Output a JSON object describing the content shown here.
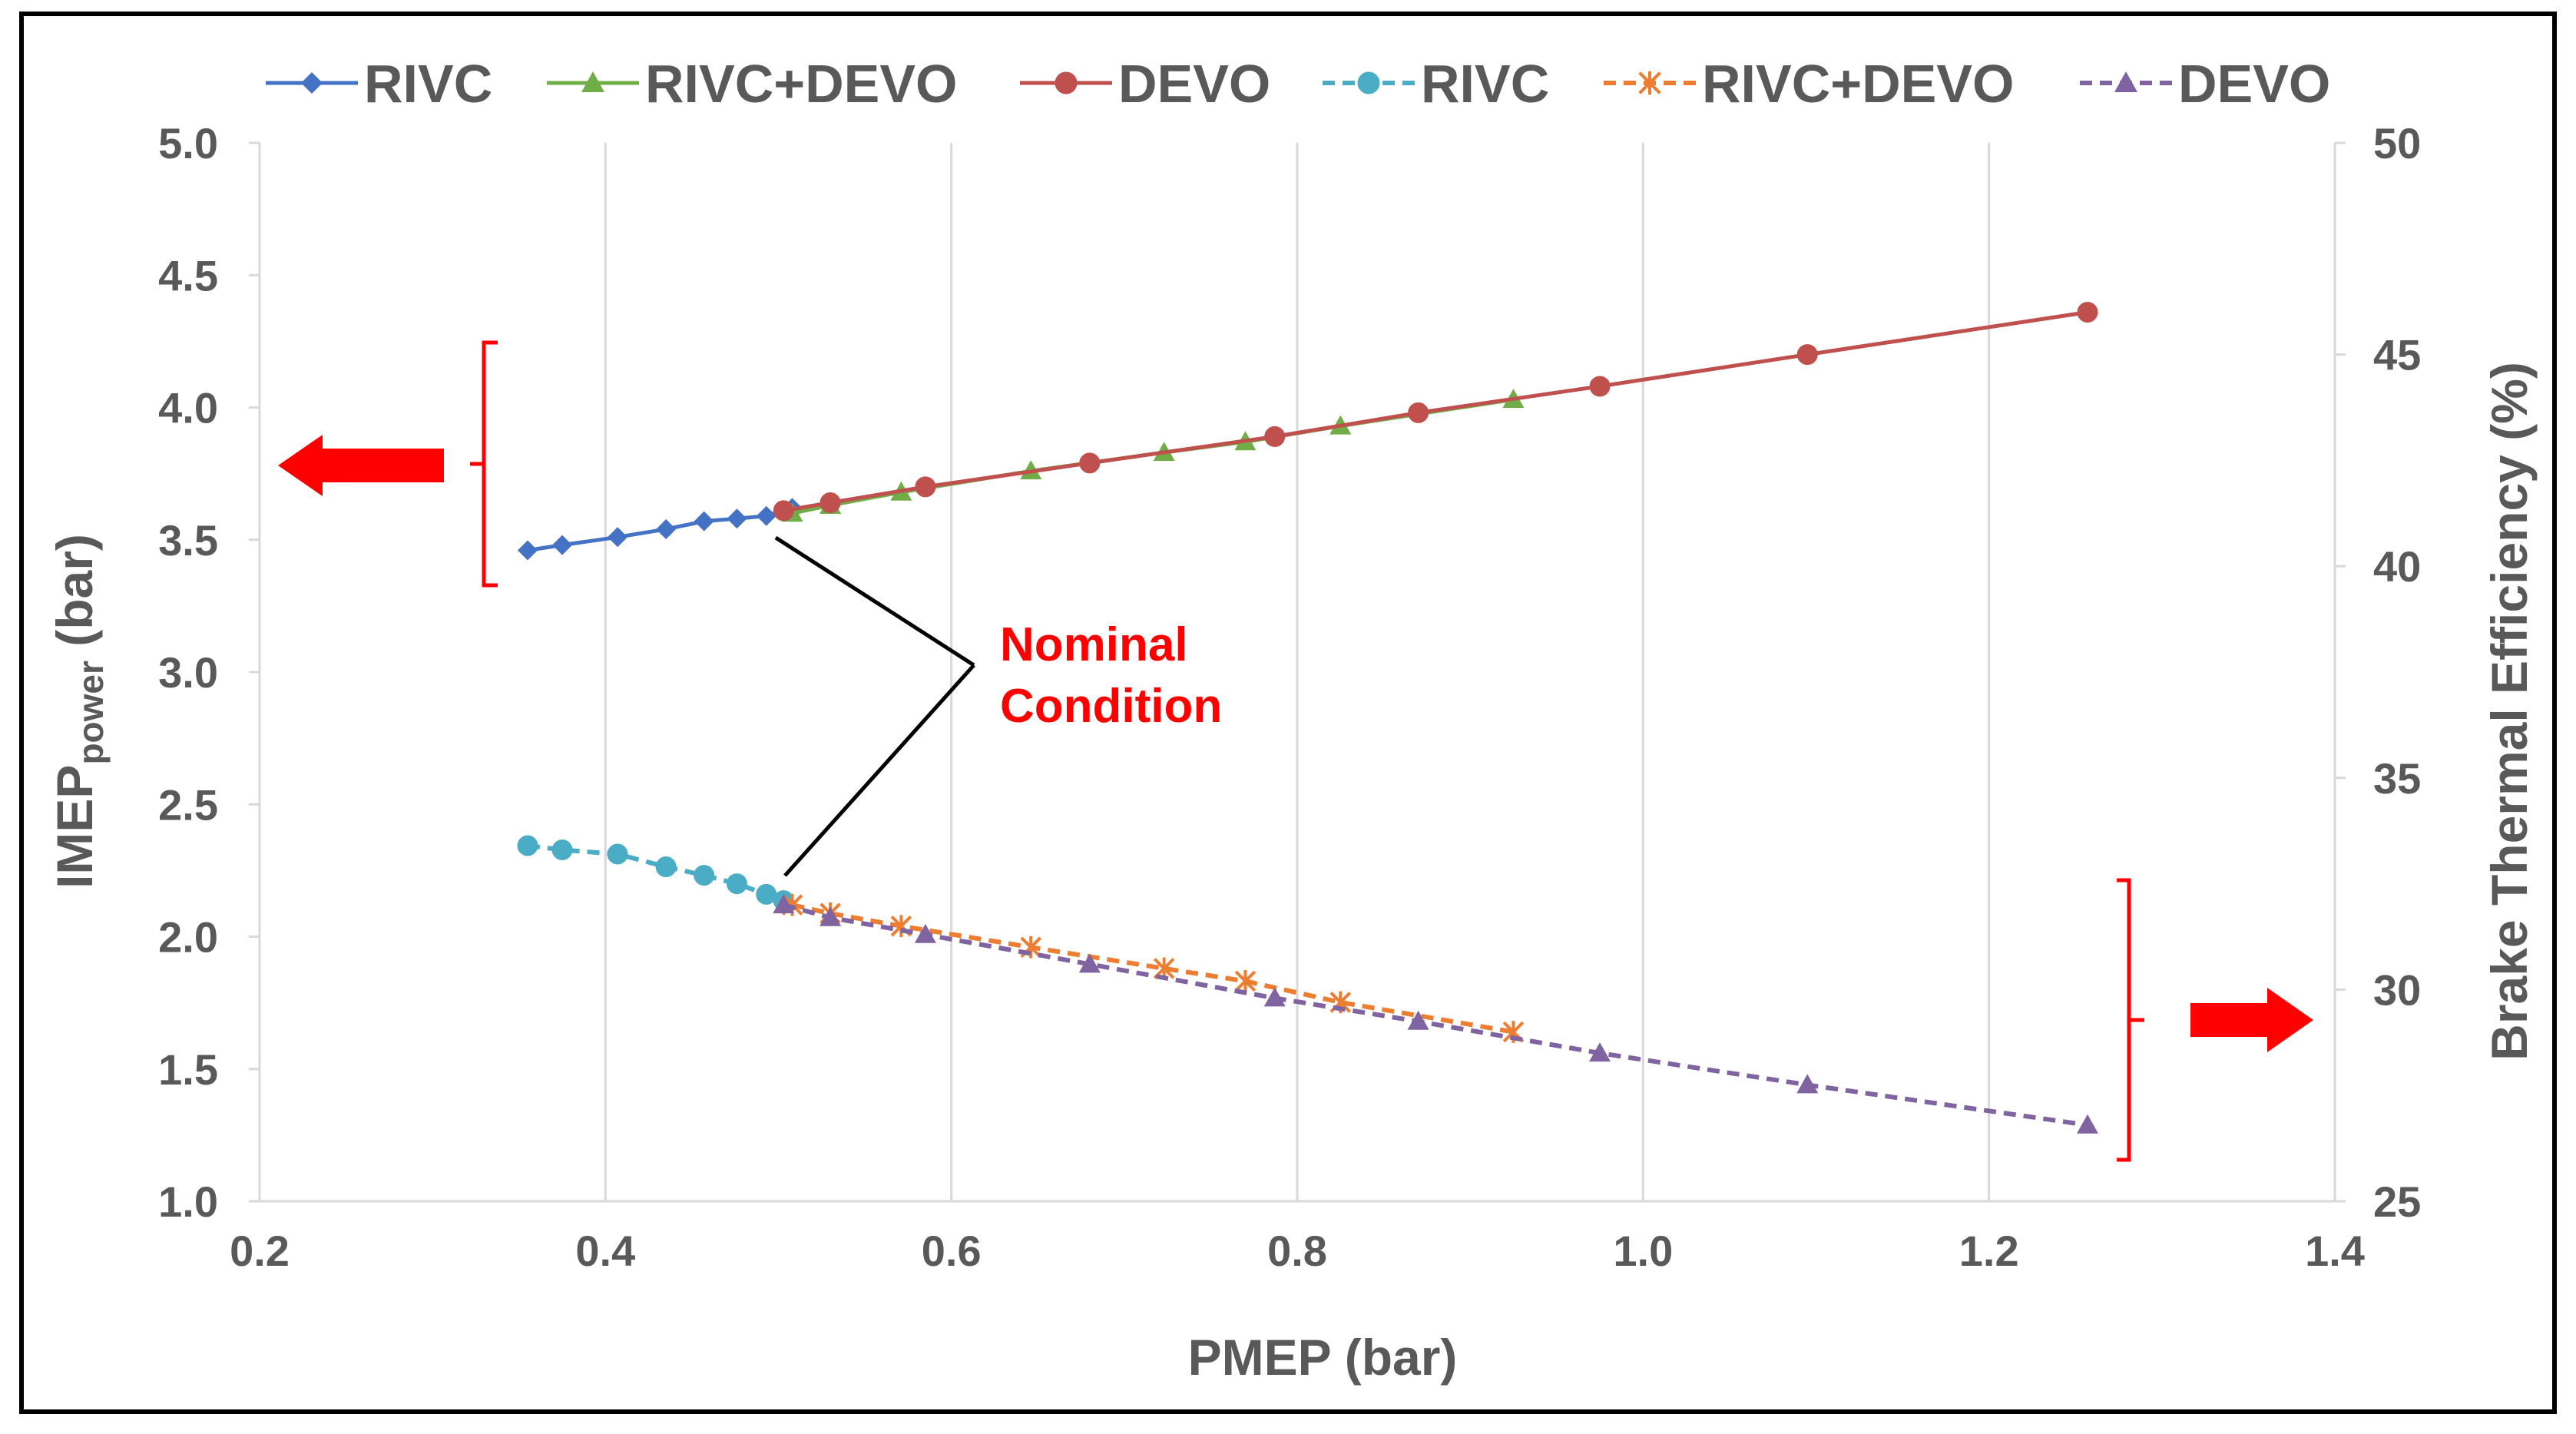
{
  "chart_data": {
    "type": "line",
    "xlabel": "PMEP (bar)",
    "ylabel_main": "IMEP",
    "ylabel_sub": "power",
    "ylabel_unit": " (bar)",
    "y2label": "Brake Thermal Efficiency (%)",
    "xlim": [
      0.2,
      1.4
    ],
    "ylim": [
      1.0,
      5.0
    ],
    "y2lim": [
      25,
      50
    ],
    "xticks": [
      "0.2",
      "0.4",
      "0.6",
      "0.8",
      "1.0",
      "1.2",
      "1.4"
    ],
    "yticks": [
      "1.0",
      "1.5",
      "2.0",
      "2.5",
      "3.0",
      "3.5",
      "4.0",
      "4.5",
      "5.0"
    ],
    "y2ticks": [
      "25",
      "30",
      "35",
      "40",
      "45",
      "50"
    ],
    "grid": "vertical",
    "legend_position": "top",
    "annotation": [
      "Nominal",
      "Condition"
    ],
    "colors": {
      "rivc": "#4472c4",
      "rivc_devo": "#70ad47",
      "devo": "#c0504d",
      "rivc_bte": "#4bacc6",
      "rivc_devo_bte": "#ed7d31",
      "devo_bte": "#8064a2",
      "annotation": "#ff0000",
      "grid": "#d9d9d9",
      "text": "#595959"
    },
    "series": [
      {
        "name": "RIVC",
        "axis": "left",
        "style": "solid",
        "marker": "diamond-marker",
        "color": "#4472c4",
        "x": [
          0.355,
          0.375,
          0.407,
          0.435,
          0.457,
          0.476,
          0.493,
          0.503,
          0.508
        ],
        "y": [
          3.46,
          3.48,
          3.51,
          3.54,
          3.57,
          3.58,
          3.59,
          3.61,
          3.62
        ]
      },
      {
        "name": "RIVC+DEVO",
        "axis": "left",
        "style": "solid",
        "marker": "triangle-marker",
        "color": "#70ad47",
        "x": [
          0.508,
          0.53,
          0.571,
          0.646,
          0.723,
          0.77,
          0.825,
          0.925
        ],
        "y": [
          3.6,
          3.63,
          3.68,
          3.76,
          3.83,
          3.87,
          3.93,
          4.03
        ]
      },
      {
        "name": "DEVO",
        "axis": "left",
        "style": "solid",
        "marker": "circle-marker",
        "color": "#c0504d",
        "x": [
          0.503,
          0.53,
          0.585,
          0.68,
          0.787,
          0.87,
          0.975,
          1.095,
          1.257
        ],
        "y": [
          3.61,
          3.64,
          3.7,
          3.79,
          3.89,
          3.98,
          4.08,
          4.2,
          4.36
        ]
      },
      {
        "name": "RIVC",
        "axis": "right",
        "style": "dashed",
        "marker": "circle-marker",
        "color": "#4bacc6",
        "x": [
          0.355,
          0.375,
          0.407,
          0.435,
          0.457,
          0.476,
          0.493,
          0.503
        ],
        "y": [
          33.4,
          33.3,
          33.2,
          32.9,
          32.7,
          32.5,
          32.25,
          32.1
        ]
      },
      {
        "name": "RIVC+DEVO",
        "axis": "right",
        "style": "dashed",
        "marker": "asterisk-marker",
        "color": "#ed7d31",
        "x": [
          0.508,
          0.53,
          0.571,
          0.646,
          0.723,
          0.77,
          0.825,
          0.925
        ],
        "y": [
          32.0,
          31.8,
          31.5,
          31.0,
          30.5,
          30.2,
          29.7,
          29.0
        ]
      },
      {
        "name": "DEVO",
        "axis": "right",
        "style": "dashed",
        "marker": "triangle-marker",
        "color": "#8064a2",
        "x": [
          0.503,
          0.53,
          0.585,
          0.68,
          0.787,
          0.87,
          0.975,
          1.095,
          1.257
        ],
        "y": [
          32.0,
          31.7,
          31.3,
          30.6,
          29.8,
          29.25,
          28.5,
          27.75,
          26.8
        ]
      }
    ]
  }
}
